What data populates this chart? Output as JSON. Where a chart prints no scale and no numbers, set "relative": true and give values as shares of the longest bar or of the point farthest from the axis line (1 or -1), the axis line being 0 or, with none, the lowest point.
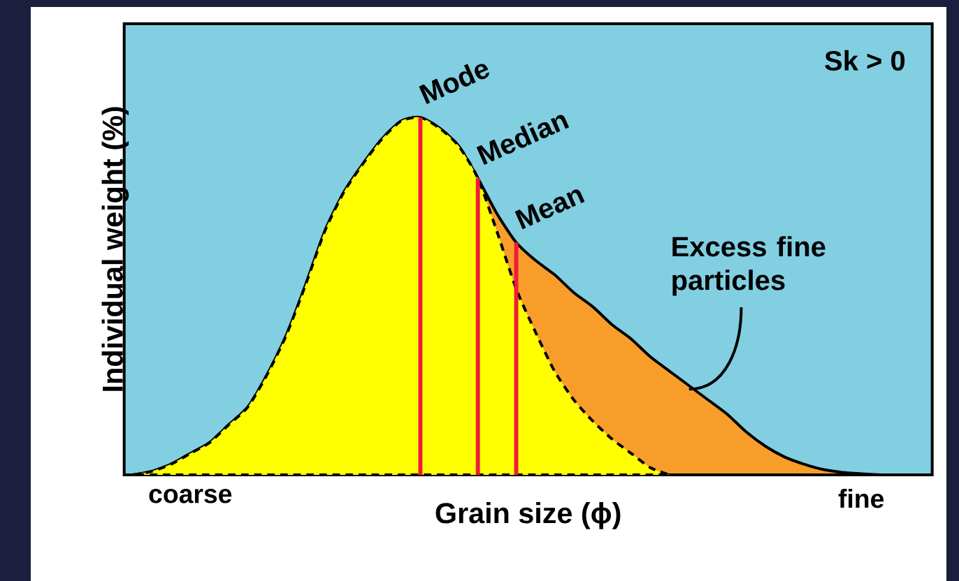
{
  "chart_data": {
    "type": "area",
    "relative": true,
    "xlabel": "Grain size (ϕ)",
    "ylabel": "Individual weight (%)",
    "categories": [
      null,
      null,
      null,
      "coarse",
      null,
      null,
      null,
      null,
      null,
      null,
      null,
      null,
      null,
      null,
      null,
      null,
      null,
      null,
      null,
      null,
      null,
      null,
      null,
      null,
      null,
      null,
      null,
      null,
      null,
      null,
      null,
      null,
      null,
      null,
      null,
      null,
      null,
      null,
      "fine",
      null,
      null
    ],
    "series": [
      {
        "color": "#f99d2a",
        "line_style": "solid",
        "values": [
          0,
          0.01,
          0.03,
          0.06,
          0.09,
          0.14,
          0.19,
          0.28,
          0.39,
          0.53,
          0.68,
          0.79,
          0.87,
          0.94,
          0.99,
          1.0,
          0.97,
          0.92,
          0.83,
          0.73,
          0.65,
          0.6,
          0.56,
          0.51,
          0.47,
          0.42,
          0.38,
          0.33,
          0.29,
          0.25,
          0.21,
          0.17,
          0.12,
          0.08,
          0.05,
          0.03,
          0.015,
          0.007,
          0.003,
          0,
          0
        ]
      },
      {
        "color": "#ffff00",
        "line_style": "dashed",
        "values": [
          0,
          0.01,
          0.03,
          0.06,
          0.09,
          0.14,
          0.19,
          0.28,
          0.39,
          0.53,
          0.68,
          0.79,
          0.87,
          0.94,
          0.99,
          1.0,
          0.97,
          0.92,
          0.83,
          0.68,
          0.52,
          0.4,
          0.29,
          0.21,
          0.15,
          0.1,
          0.06,
          0.02,
          0,
          null,
          null,
          null,
          null,
          null,
          null,
          null,
          null,
          null,
          null,
          null,
          null
        ]
      },
      {
        "type": "bar",
        "color": "#ee1c3a",
        "values": [
          null,
          null,
          null,
          null,
          null,
          null,
          null,
          null,
          null,
          null,
          null,
          null,
          null,
          null,
          null,
          1.0,
          null,
          null,
          0.83,
          null,
          0.65,
          null,
          null,
          null,
          null,
          null,
          null,
          null,
          null,
          null,
          null,
          null,
          null,
          null,
          null,
          null,
          null,
          null,
          null,
          null,
          null
        ]
      }
    ],
    "annotations": [
      "Mode",
      "Median",
      "Mean",
      "Sk > 0",
      "Excess fine particles"
    ],
    "grid": false
  }
}
